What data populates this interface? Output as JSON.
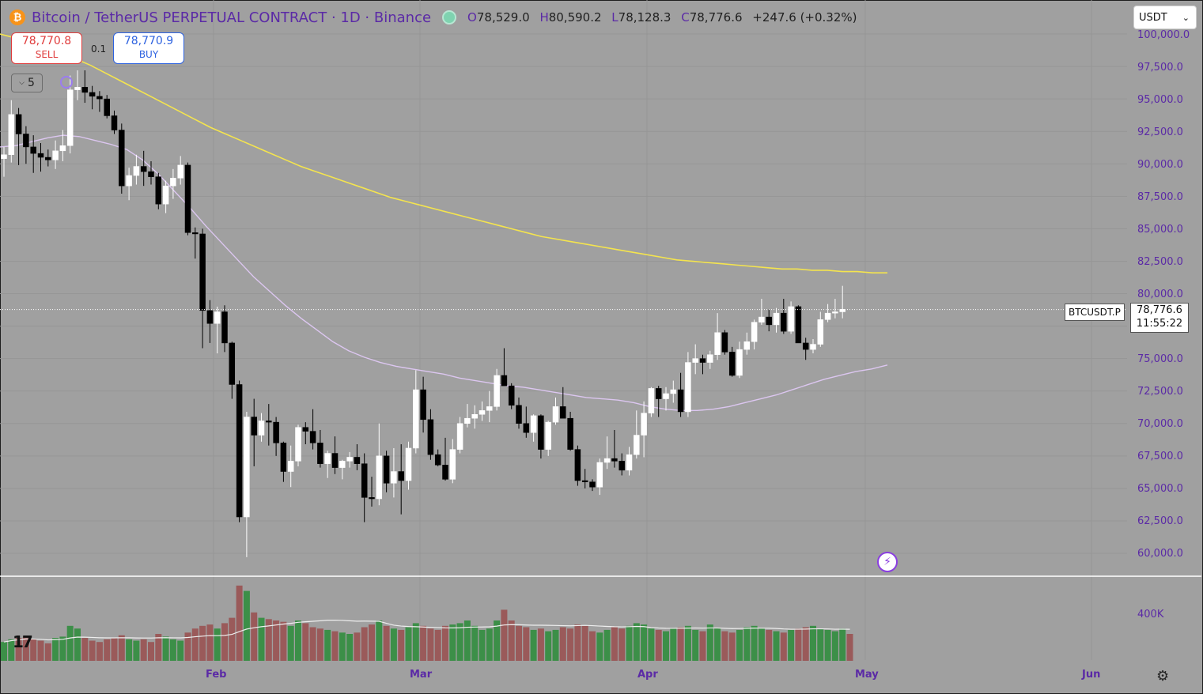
{
  "legend": {
    "coin_glyph": "₿",
    "symbol": "Bitcoin / TetherUS PERPETUAL CONTRACT · 1D · Binance",
    "o_label": "O",
    "o": "78,529.0",
    "h_label": "H",
    "h": "80,590.2",
    "l_label": "L",
    "l": "78,128.3",
    "c_label": "C",
    "c": "78,776.6",
    "change": "+247.6 (+0.32%)"
  },
  "trade": {
    "sell_price": "78,770.8",
    "sell_label": "SELL",
    "buy_price": "78,770.9",
    "buy_label": "BUY",
    "spread": "0.1"
  },
  "indicators_toggle": "5",
  "currency": {
    "value": "USDT",
    "chevron": "⌄"
  },
  "price_label": {
    "symbol": "BTCUSDT.P",
    "price": "78,776.6",
    "countdown": "11:55:22"
  },
  "yaxis": [
    "100,000.0",
    "97,500.0",
    "95,000.0",
    "92,500.0",
    "90,000.0",
    "87,500.0",
    "85,000.0",
    "82,500.0",
    "80,000.0",
    "77,500.0",
    "75,000.0",
    "72,500.0",
    "70,000.0",
    "67,500.0",
    "65,000.0",
    "62,500.0",
    "60,000.0"
  ],
  "volume_axis": "400K",
  "xaxis": [
    "Feb",
    "Mar",
    "Apr",
    "May",
    "Jun"
  ],
  "logo": "17",
  "colors": {
    "up": "#ffffff",
    "down": "#000000",
    "ma_long": "#f4e44e",
    "ma_short": "#dcc6f0",
    "vol_up": "#3c8f48",
    "vol_down": "#9a5a5a",
    "axis_text": "#5b2aa6"
  },
  "chart_data": {
    "type": "candlestick",
    "interval": "1D",
    "candles": [
      [
        90400,
        91300,
        89000,
        90700
      ],
      [
        90700,
        94900,
        90100,
        93800
      ],
      [
        93800,
        94300,
        89900,
        92300
      ],
      [
        92300,
        92900,
        90000,
        91300
      ],
      [
        91300,
        92200,
        89300,
        90800
      ],
      [
        90800,
        91600,
        89400,
        90500
      ],
      [
        90500,
        91100,
        89800,
        90300
      ],
      [
        90300,
        91800,
        89600,
        91000
      ],
      [
        91000,
        92600,
        90200,
        91400
      ],
      [
        91400,
        96800,
        90800,
        95700
      ],
      [
        95700,
        97200,
        94900,
        95900
      ],
      [
        95900,
        97200,
        94700,
        95500
      ],
      [
        95500,
        96000,
        94200,
        95200
      ],
      [
        95200,
        95600,
        94000,
        95000
      ],
      [
        95000,
        95300,
        93500,
        93700
      ],
      [
        93700,
        94100,
        92300,
        92600
      ],
      [
        92600,
        93100,
        87700,
        88300
      ],
      [
        88300,
        89700,
        87200,
        89100
      ],
      [
        89100,
        90700,
        88400,
        89800
      ],
      [
        89800,
        91000,
        88300,
        89400
      ],
      [
        89400,
        90200,
        88400,
        89000
      ],
      [
        89000,
        89300,
        86500,
        86900
      ],
      [
        86900,
        88700,
        86200,
        88300
      ],
      [
        88300,
        89600,
        87300,
        88900
      ],
      [
        88900,
        90600,
        88400,
        89900
      ],
      [
        89900,
        90100,
        84500,
        84700
      ],
      [
        84700,
        85100,
        82700,
        84600
      ],
      [
        84600,
        85000,
        75800,
        78700
      ],
      [
        78700,
        79500,
        76200,
        77700
      ],
      [
        77700,
        79000,
        75400,
        78600
      ],
      [
        78600,
        79100,
        75500,
        76200
      ],
      [
        76200,
        76300,
        71900,
        73000
      ],
      [
        73000,
        73300,
        62400,
        62800
      ],
      [
        62800,
        70900,
        59700,
        70500
      ],
      [
        70500,
        71900,
        66700,
        69100
      ],
      [
        69100,
        70800,
        68600,
        70200
      ],
      [
        70200,
        71500,
        68300,
        70100
      ],
      [
        70100,
        70500,
        67500,
        68500
      ],
      [
        68500,
        68600,
        65500,
        66300
      ],
      [
        66300,
        68300,
        65100,
        67100
      ],
      [
        67100,
        69900,
        66700,
        69700
      ],
      [
        69700,
        70100,
        68400,
        69400
      ],
      [
        69400,
        71100,
        68000,
        68500
      ],
      [
        68500,
        69500,
        66600,
        66900
      ],
      [
        66900,
        67900,
        65800,
        67700
      ],
      [
        67700,
        69000,
        66100,
        66600
      ],
      [
        66600,
        67200,
        65700,
        67100
      ],
      [
        67100,
        67800,
        66600,
        67400
      ],
      [
        67400,
        68400,
        66400,
        66900
      ],
      [
        66900,
        67700,
        62400,
        64300
      ],
      [
        64300,
        65900,
        63600,
        64200
      ],
      [
        64200,
        70000,
        63700,
        67500
      ],
      [
        67500,
        67900,
        64700,
        65400
      ],
      [
        65400,
        68100,
        64300,
        66300
      ],
      [
        66300,
        68400,
        63000,
        65600
      ],
      [
        65600,
        68600,
        64900,
        68100
      ],
      [
        68100,
        74100,
        67700,
        72600
      ],
      [
        72600,
        73600,
        69300,
        70300
      ],
      [
        70300,
        71100,
        67200,
        67600
      ],
      [
        67600,
        68000,
        66700,
        66800
      ],
      [
        66800,
        68900,
        65600,
        65700
      ],
      [
        65700,
        68800,
        65400,
        68000
      ],
      [
        68000,
        70500,
        67700,
        70000
      ],
      [
        70000,
        71500,
        69700,
        70400
      ],
      [
        70400,
        71400,
        69600,
        70700
      ],
      [
        70700,
        71700,
        70200,
        71000
      ],
      [
        71000,
        72500,
        70100,
        71300
      ],
      [
        71300,
        74200,
        71000,
        73700
      ],
      [
        73700,
        75800,
        72900,
        72900
      ],
      [
        72900,
        73100,
        71100,
        71400
      ],
      [
        71400,
        72000,
        69600,
        70000
      ],
      [
        70000,
        71300,
        68900,
        69300
      ],
      [
        69300,
        70700,
        68600,
        70600
      ],
      [
        70600,
        70700,
        67300,
        68000
      ],
      [
        68000,
        70200,
        67500,
        70100
      ],
      [
        70100,
        72000,
        69900,
        71300
      ],
      [
        71300,
        72800,
        70700,
        70400
      ],
      [
        70400,
        70900,
        67900,
        68000
      ],
      [
        68000,
        68300,
        65200,
        65600
      ],
      [
        65600,
        66500,
        65000,
        65500
      ],
      [
        65500,
        65700,
        64800,
        65100
      ],
      [
        65100,
        67300,
        64500,
        67000
      ],
      [
        67000,
        69000,
        66500,
        67300
      ],
      [
        67300,
        69500,
        66600,
        67100
      ],
      [
        67100,
        67700,
        66000,
        66400
      ],
      [
        66400,
        68200,
        66000,
        67600
      ],
      [
        67600,
        71000,
        67300,
        69100
      ],
      [
        69100,
        71700,
        67400,
        70800
      ],
      [
        70800,
        72800,
        70500,
        72700
      ],
      [
        72700,
        72900,
        70500,
        71900
      ],
      [
        71900,
        72800,
        71000,
        72300
      ],
      [
        72300,
        73300,
        71600,
        72600
      ],
      [
        72600,
        73900,
        70500,
        70900
      ],
      [
        70900,
        75500,
        70500,
        74700
      ],
      [
        74700,
        76100,
        73800,
        75000
      ],
      [
        75000,
        75300,
        73800,
        74700
      ],
      [
        74700,
        75600,
        74200,
        75300
      ],
      [
        75300,
        78500,
        74900,
        77000
      ],
      [
        77000,
        77200,
        75300,
        75500
      ],
      [
        75500,
        75900,
        73600,
        73700
      ],
      [
        73700,
        76300,
        73500,
        75700
      ],
      [
        75700,
        77000,
        75300,
        76300
      ],
      [
        76300,
        78000,
        75700,
        77800
      ],
      [
        77800,
        79600,
        77600,
        78200
      ],
      [
        78200,
        78800,
        77100,
        77600
      ],
      [
        77600,
        78900,
        77000,
        78500
      ],
      [
        78500,
        79600,
        76900,
        77100
      ],
      [
        77100,
        79400,
        76900,
        79000
      ],
      [
        79000,
        79100,
        76500,
        76200
      ],
      [
        76200,
        76600,
        74900,
        75700
      ],
      [
        75700,
        76500,
        75400,
        76100
      ],
      [
        76100,
        78600,
        75900,
        78000
      ],
      [
        78000,
        79200,
        77800,
        78500
      ],
      [
        78500,
        79600,
        78100,
        78600
      ],
      [
        78600,
        80600,
        78100,
        78800
      ]
    ],
    "ma_long": [
      100000,
      99700,
      99400,
      99000,
      98600,
      98100,
      97600,
      97000,
      96400,
      95800,
      95200,
      94600,
      94000,
      93400,
      92800,
      92300,
      91800,
      91300,
      90800,
      90300,
      89800,
      89400,
      89000,
      88600,
      88200,
      87800,
      87400,
      87100,
      86800,
      86500,
      86200,
      85900,
      85600,
      85300,
      85000,
      84700,
      84400,
      84200,
      84000,
      83800,
      83600,
      83400,
      83200,
      83000,
      82800,
      82600,
      82500,
      82400,
      82300,
      82200,
      82100,
      82000,
      81900,
      81900,
      81800,
      81800,
      81700,
      81700,
      81600,
      81600
    ],
    "ma_short": [
      91300,
      91400,
      91700,
      92000,
      92200,
      92100,
      91800,
      91500,
      91100,
      90300,
      89200,
      87900,
      86600,
      85200,
      83900,
      82600,
      81300,
      80200,
      79100,
      78100,
      77200,
      76300,
      75600,
      75100,
      74700,
      74400,
      74200,
      74000,
      73800,
      73500,
      73300,
      73100,
      72900,
      72800,
      72600,
      72400,
      72200,
      72000,
      71900,
      71800,
      71600,
      71300,
      71100,
      71000,
      71000,
      71100,
      71300,
      71600,
      71900,
      72200,
      72600,
      73000,
      73400,
      73700,
      74000,
      74200,
      74500
    ],
    "volume": [
      140,
      160,
      170,
      180,
      160,
      150,
      130,
      170,
      180,
      260,
      240,
      170,
      150,
      140,
      160,
      170,
      190,
      160,
      150,
      160,
      140,
      200,
      180,
      160,
      150,
      210,
      240,
      260,
      270,
      240,
      280,
      320,
      560,
      520,
      360,
      320,
      310,
      300,
      290,
      260,
      300,
      280,
      250,
      240,
      230,
      220,
      210,
      200,
      210,
      250,
      270,
      300,
      260,
      240,
      230,
      250,
      280,
      260,
      240,
      230,
      260,
      270,
      280,
      300,
      260,
      230,
      240,
      300,
      380,
      300,
      260,
      250,
      230,
      240,
      220,
      230,
      250,
      240,
      270,
      260,
      220,
      210,
      230,
      250,
      240,
      260,
      280,
      270,
      240,
      230,
      220,
      240,
      250,
      260,
      230,
      220,
      270,
      240,
      220,
      210,
      230,
      250,
      260,
      240,
      230,
      220,
      210,
      230,
      240,
      250,
      260,
      240,
      230,
      220,
      240,
      200
    ]
  }
}
